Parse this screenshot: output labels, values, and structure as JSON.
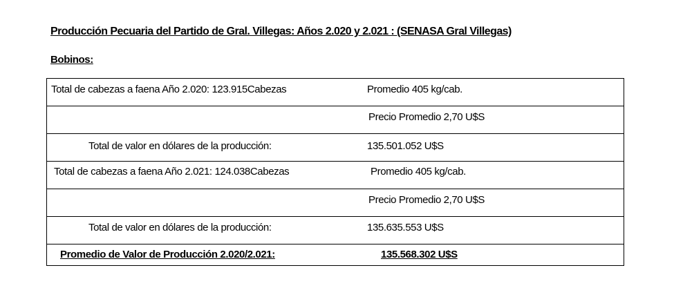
{
  "title": "Producción Pecuaria del Partido de Gral. Villegas:  Años 2.020 y 2.021 : (SENASA Gral Villegas)",
  "section": "Bobinos:",
  "rows": [
    {
      "left": "Total de cabezas  a faena Año 2.020:   123.915Cabezas",
      "right": "Promedio    405 kg/cab."
    },
    {
      "left": "",
      "right": "Precio Promedio  2,70 U$S"
    },
    {
      "left": "Total de valor en dólares de la producción:",
      "right": "135.501.052 U$S"
    },
    {
      "left": "Total de cabezas  a faena Año 2.021:   124.038Cabezas",
      "right": "Promedio    405 kg/cab."
    },
    {
      "left": "",
      "right": "Precio Promedio  2,70 U$S"
    },
    {
      "left": "Total de valor en dólares de la producción:",
      "right": "135.635.553 U$S"
    }
  ],
  "summary": {
    "label": "Promedio de Valor de Producción 2.020/2.021:",
    "value": "135.568.302 U$S"
  }
}
